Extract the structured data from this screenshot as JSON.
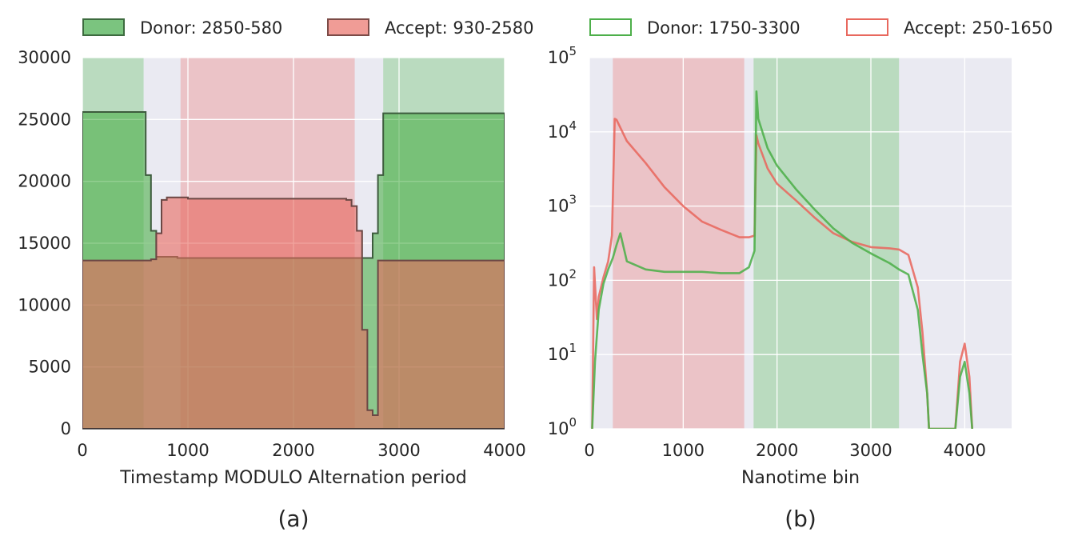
{
  "legend": [
    {
      "label": "Donor: 2850-580",
      "style": "filled",
      "fill": "#7bc47f",
      "stroke": "#3d6b3f"
    },
    {
      "label": "Accept: 930-2580",
      "style": "filled",
      "fill": "#f09c96",
      "stroke": "#7c4b47"
    },
    {
      "label": "Donor: 1750-3300",
      "style": "outline",
      "stroke": "#4daf4a"
    },
    {
      "label": "Accept: 250-1650",
      "style": "outline",
      "stroke": "#e8685e"
    }
  ],
  "colors": {
    "donor": "#4daf4a",
    "acceptor": "#e8685e",
    "panel_bg": "#eaeaf2",
    "donor_span": "#b2d8b6",
    "acceptor_span": "#ebbcc0"
  },
  "chart_data": [
    {
      "type": "area",
      "panel_label": "(a)",
      "xlabel": "Timestamp MODULO Alternation period",
      "ylabel": "",
      "xlim": [
        0,
        4000
      ],
      "ylim": [
        0,
        30000
      ],
      "xticks": [
        0,
        1000,
        2000,
        3000,
        4000
      ],
      "yticks": [
        0,
        5000,
        10000,
        15000,
        20000,
        25000,
        30000
      ],
      "grid": true,
      "spans": [
        {
          "name": "Donor: 2850-580",
          "ranges": [
            [
              0,
              580
            ],
            [
              2850,
              4000
            ]
          ]
        },
        {
          "name": "Accept: 930-2580",
          "ranges": [
            [
              930,
              2580
            ]
          ]
        }
      ],
      "x": [
        0,
        580,
        600,
        650,
        700,
        750,
        800,
        850,
        900,
        950,
        1000,
        1500,
        2000,
        2500,
        2550,
        2600,
        2650,
        2700,
        2750,
        2800,
        2850,
        3000,
        3500,
        4000
      ],
      "series": [
        {
          "name": "Donor: 2850-580",
          "style": "filled-step",
          "values": [
            25600,
            25600,
            20500,
            16000,
            13900,
            13900,
            13900,
            13900,
            13800,
            13800,
            13800,
            13800,
            13800,
            13800,
            13800,
            13800,
            13800,
            13800,
            15800,
            20500,
            25500,
            25500,
            25500,
            25500
          ]
        },
        {
          "name": "Accept: 930-2580",
          "style": "filled-step",
          "values": [
            13600,
            13600,
            13600,
            13700,
            15800,
            18500,
            18700,
            18700,
            18700,
            18700,
            18600,
            18600,
            18600,
            18500,
            18000,
            16000,
            8000,
            1500,
            1100,
            13600,
            13600,
            13600,
            13600,
            13600
          ]
        }
      ]
    },
    {
      "type": "line",
      "panel_label": "(b)",
      "xlabel": "Nanotime bin",
      "ylabel": "",
      "yscale": "log",
      "xlim": [
        0,
        4500
      ],
      "ylim": [
        1,
        100000
      ],
      "xticks": [
        0,
        1000,
        2000,
        3000,
        4000
      ],
      "yticks": [
        1,
        10,
        100,
        1000,
        10000,
        100000
      ],
      "grid": true,
      "spans": [
        {
          "name": "Accept: 250-1650",
          "ranges": [
            [
              250,
              1650
            ]
          ]
        },
        {
          "name": "Donor: 1750-3300",
          "ranges": [
            [
              1750,
              3300
            ]
          ]
        }
      ],
      "series": [
        {
          "name": "Donor: 1750-3300",
          "x": [
            30,
            60,
            100,
            150,
            200,
            250,
            290,
            330,
            400,
            600,
            800,
            1000,
            1200,
            1400,
            1600,
            1700,
            1760,
            1780,
            1800,
            1900,
            2000,
            2200,
            2400,
            2600,
            2800,
            3000,
            3200,
            3300,
            3400,
            3500,
            3550,
            3600,
            3620,
            3900,
            3950,
            4000,
            4050,
            4080
          ],
          "y": [
            1,
            8,
            40,
            90,
            140,
            200,
            300,
            430,
            180,
            140,
            130,
            130,
            130,
            125,
            125,
            150,
            250,
            35000,
            15000,
            6000,
            3500,
            1700,
            900,
            500,
            320,
            230,
            170,
            140,
            120,
            40,
            10,
            3,
            1,
            1,
            5,
            8,
            3,
            1
          ]
        },
        {
          "name": "Accept: 250-1650",
          "x": [
            30,
            50,
            80,
            100,
            150,
            200,
            240,
            270,
            290,
            400,
            600,
            800,
            1000,
            1200,
            1400,
            1600,
            1700,
            1760,
            1780,
            1800,
            1900,
            2000,
            2200,
            2400,
            2600,
            2800,
            3000,
            3200,
            3300,
            3400,
            3500,
            3550,
            3600,
            3620,
            3900,
            3950,
            4000,
            4050,
            4080
          ],
          "y": [
            1,
            150,
            30,
            60,
            110,
            180,
            400,
            15000,
            14500,
            7500,
            3800,
            1800,
            1000,
            620,
            480,
            380,
            380,
            400,
            9000,
            7000,
            3200,
            2000,
            1200,
            700,
            430,
            330,
            280,
            270,
            260,
            220,
            80,
            20,
            3,
            1,
            1,
            8,
            14,
            5,
            1
          ]
        }
      ]
    }
  ]
}
